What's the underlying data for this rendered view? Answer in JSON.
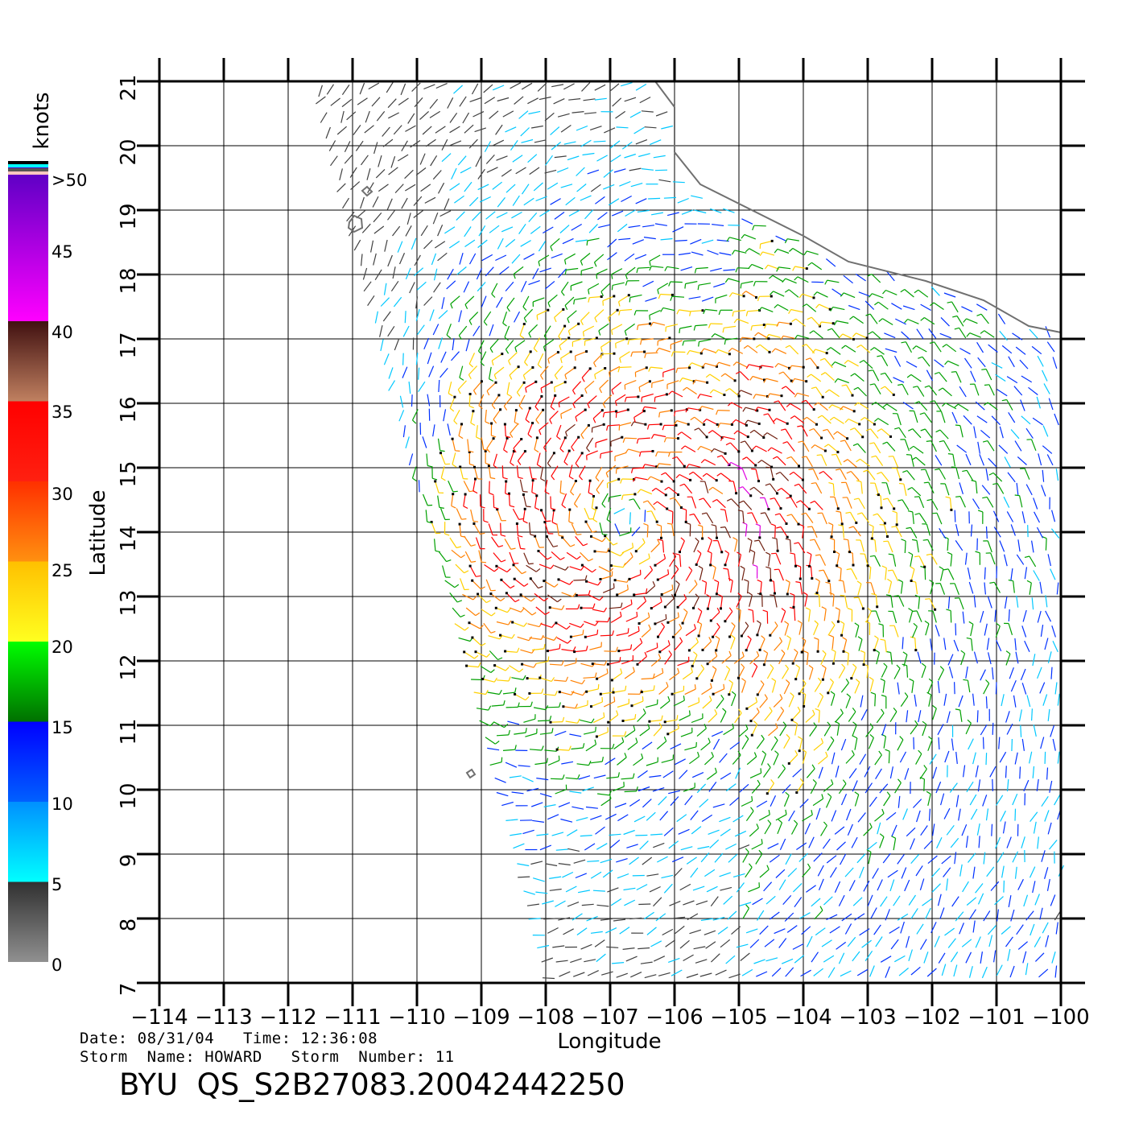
{
  "info": {
    "date_line": "Date: 08/31/04   Time: 12:36:08",
    "storm_line": "Storm  Name: HOWARD   Storm  Number: 11",
    "product": "BYU  QS_S2B27083.20042442250"
  },
  "chart_data": {
    "type": "wind-barb",
    "title": "BYU  QS_S2B27083.20042442250",
    "xlabel": "Longitude",
    "ylabel": "Latitude",
    "xlim": [
      -114,
      -100
    ],
    "ylim": [
      7,
      21
    ],
    "grid": true,
    "x_ticks": [
      "-114",
      "-113",
      "-112",
      "-111",
      "-110",
      "-109",
      "-108",
      "-107",
      "-106",
      "-105",
      "-104",
      "-103",
      "-102",
      "-101",
      "-100"
    ],
    "y_ticks": [
      "7",
      "8",
      "9",
      "10",
      "11",
      "12",
      "13",
      "14",
      "15",
      "16",
      "17",
      "18",
      "19",
      "20",
      "21"
    ],
    "colorbar": {
      "label": "knots",
      "ticks": [
        "0",
        "5",
        "10",
        "15",
        "20",
        "25",
        "30",
        "35",
        "40",
        "45",
        ">50"
      ],
      "bands": [
        {
          "range": [
            0,
            5
          ],
          "color": "#808080"
        },
        {
          "range": [
            5,
            10
          ],
          "color": "#00e0ff"
        },
        {
          "range": [
            10,
            15
          ],
          "color": "#0000ff"
        },
        {
          "range": [
            15,
            20
          ],
          "color": "#00a000"
        },
        {
          "range": [
            20,
            25
          ],
          "color": "#ffd800"
        },
        {
          "range": [
            25,
            30
          ],
          "color": "#ff7000"
        },
        {
          "range": [
            30,
            35
          ],
          "color": "#ff0000"
        },
        {
          "range": [
            35,
            40
          ],
          "color": "#6a2a20"
        },
        {
          "range": [
            40,
            50
          ],
          "color": "#ff00ff"
        }
      ]
    },
    "storm_center_approx": {
      "lon": -106.8,
      "lat": 14.2
    },
    "max_wind_knots_approx": 35,
    "swath_left_edge": [
      {
        "lon": -111.5,
        "lat": 21
      },
      {
        "lon": -108,
        "lat": 7
      }
    ],
    "coastline": [
      [
        -106.3,
        21
      ],
      [
        -106.0,
        20.6
      ],
      [
        -106.0,
        19.9
      ],
      [
        -105.6,
        19.4
      ],
      [
        -105.0,
        19.1
      ],
      [
        -104.0,
        18.6
      ],
      [
        -103.3,
        18.2
      ],
      [
        -102.1,
        17.9
      ],
      [
        -101.2,
        17.6
      ],
      [
        -100.5,
        17.2
      ],
      [
        -100,
        17.1
      ]
    ]
  }
}
